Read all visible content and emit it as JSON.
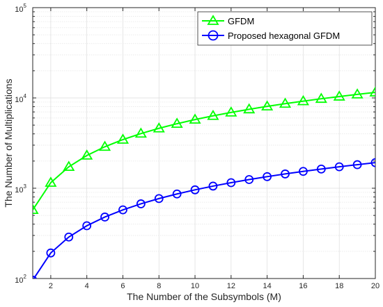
{
  "chart_data": {
    "type": "line",
    "title": "",
    "xlabel": "The Number of the Subsymbols (M)",
    "ylabel": "The Number of Multiplications",
    "xlim": [
      1,
      20
    ],
    "ylim": [
      100,
      100000
    ],
    "yscale": "log",
    "grid": true,
    "legend_position": "top-right",
    "x_tick_labels": [
      "2",
      "4",
      "6",
      "8",
      "10",
      "12",
      "14",
      "16",
      "18",
      "20"
    ],
    "y_tick_labels": [
      {
        "base": "10",
        "exp": "2"
      },
      {
        "base": "10",
        "exp": "3"
      },
      {
        "base": "10",
        "exp": "4"
      },
      {
        "base": "10",
        "exp": "5"
      }
    ],
    "x": [
      1,
      2,
      3,
      4,
      5,
      6,
      7,
      8,
      9,
      10,
      11,
      12,
      13,
      14,
      15,
      16,
      17,
      18,
      19,
      20
    ],
    "series": [
      {
        "name": "GFDM",
        "color": "#00ff00",
        "marker": "triangle",
        "values": [
          576,
          1152,
          1728,
          2304,
          2880,
          3456,
          4032,
          4608,
          5184,
          5760,
          6336,
          6912,
          7488,
          8064,
          8640,
          9216,
          9792,
          10368,
          10944,
          11520
        ]
      },
      {
        "name": "Proposed hexagonal GFDM",
        "color": "#0000ff",
        "marker": "circle",
        "values": [
          96,
          192,
          288,
          384,
          480,
          576,
          672,
          768,
          864,
          960,
          1056,
          1152,
          1248,
          1344,
          1440,
          1536,
          1632,
          1728,
          1824,
          1920
        ]
      }
    ]
  }
}
